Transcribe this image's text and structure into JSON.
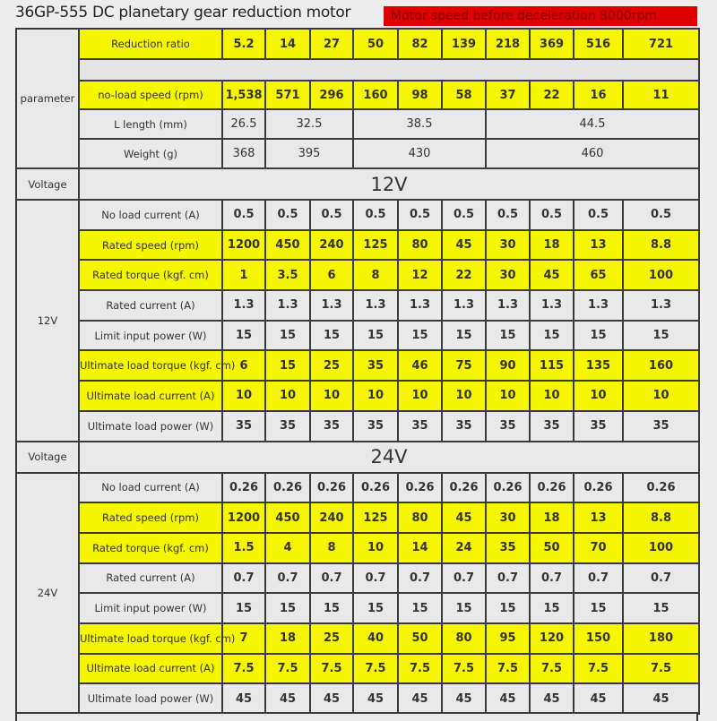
{
  "title": "36GP-555 DC planetary gear reduction motor",
  "badge": "Motor speed before deceleration 8000rpm",
  "colors": {
    "highlight": "#f6f600",
    "badge": "#e00000",
    "cell": "#e9e9e9"
  },
  "parameter": {
    "label": "parameter",
    "reduction_ratio": {
      "label": "Reduction ratio",
      "values": [
        "5.2",
        "14",
        "27",
        "50",
        "82",
        "139",
        "218",
        "369",
        "516",
        "721"
      ]
    },
    "no_load_speed": {
      "label": "no-load speed (rpm)",
      "values": [
        "1,538",
        "571",
        "296",
        "160",
        "98",
        "58",
        "37",
        "22",
        "16",
        "11"
      ]
    },
    "length": {
      "label": "L length (mm)",
      "values": [
        "26.5",
        "32.5",
        "38.5",
        "44.5"
      ]
    },
    "weight": {
      "label": "Weight (g)",
      "values": [
        "368",
        "395",
        "430",
        "460"
      ]
    }
  },
  "voltage_label": "Voltage",
  "sections": [
    {
      "voltage": "12V",
      "side_label": "12V",
      "rows": [
        {
          "label": "No load current (A)",
          "highlight": false,
          "values": [
            "0.5",
            "0.5",
            "0.5",
            "0.5",
            "0.5",
            "0.5",
            "0.5",
            "0.5",
            "0.5",
            "0.5"
          ]
        },
        {
          "label": "Rated speed (rpm)",
          "highlight": true,
          "values": [
            "1200",
            "450",
            "240",
            "125",
            "80",
            "45",
            "30",
            "18",
            "13",
            "8.8"
          ]
        },
        {
          "label": "Rated torque (kgf. cm)",
          "highlight": true,
          "values": [
            "1",
            "3.5",
            "6",
            "8",
            "12",
            "22",
            "30",
            "45",
            "65",
            "100"
          ]
        },
        {
          "label": "Rated current (A)",
          "highlight": false,
          "values": [
            "1.3",
            "1.3",
            "1.3",
            "1.3",
            "1.3",
            "1.3",
            "1.3",
            "1.3",
            "1.3",
            "1.3"
          ]
        },
        {
          "label": "Limit input power (W)",
          "highlight": false,
          "values": [
            "15",
            "15",
            "15",
            "15",
            "15",
            "15",
            "15",
            "15",
            "15",
            "15"
          ]
        },
        {
          "label": "Ultimate load torque (kgf. cm)",
          "highlight": true,
          "values": [
            "6",
            "15",
            "25",
            "35",
            "46",
            "75",
            "90",
            "115",
            "135",
            "160"
          ]
        },
        {
          "label": "Ultimate load current (A)",
          "highlight": true,
          "values": [
            "10",
            "10",
            "10",
            "10",
            "10",
            "10",
            "10",
            "10",
            "10",
            "10"
          ]
        },
        {
          "label": "Ultimate load power (W)",
          "highlight": false,
          "values": [
            "35",
            "35",
            "35",
            "35",
            "35",
            "35",
            "35",
            "35",
            "35",
            "35"
          ]
        }
      ]
    },
    {
      "voltage": "24V",
      "side_label": "24V",
      "rows": [
        {
          "label": "No load current (A)",
          "highlight": false,
          "values": [
            "0.26",
            "0.26",
            "0.26",
            "0.26",
            "0.26",
            "0.26",
            "0.26",
            "0.26",
            "0.26",
            "0.26"
          ]
        },
        {
          "label": "Rated speed (rpm)",
          "highlight": true,
          "values": [
            "1200",
            "450",
            "240",
            "125",
            "80",
            "45",
            "30",
            "18",
            "13",
            "8.8"
          ]
        },
        {
          "label": "Rated torque (kgf. cm)",
          "highlight": true,
          "values": [
            "1.5",
            "4",
            "8",
            "10",
            "14",
            "24",
            "35",
            "50",
            "70",
            "100"
          ]
        },
        {
          "label": "Rated current (A)",
          "highlight": false,
          "values": [
            "0.7",
            "0.7",
            "0.7",
            "0.7",
            "0.7",
            "0.7",
            "0.7",
            "0.7",
            "0.7",
            "0.7"
          ]
        },
        {
          "label": "Limit input power (W)",
          "highlight": false,
          "values": [
            "15",
            "15",
            "15",
            "15",
            "15",
            "15",
            "15",
            "15",
            "15",
            "15"
          ]
        },
        {
          "label": "Ultimate load torque (kgf. cm)",
          "highlight": true,
          "values": [
            "7",
            "18",
            "25",
            "40",
            "50",
            "80",
            "95",
            "120",
            "150",
            "180"
          ]
        },
        {
          "label": "Ultimate load current (A)",
          "highlight": true,
          "values": [
            "7.5",
            "7.5",
            "7.5",
            "7.5",
            "7.5",
            "7.5",
            "7.5",
            "7.5",
            "7.5",
            "7.5"
          ]
        },
        {
          "label": "Ultimate load power (W)",
          "highlight": false,
          "values": [
            "45",
            "45",
            "45",
            "45",
            "45",
            "45",
            "45",
            "45",
            "45",
            "45"
          ]
        }
      ]
    }
  ]
}
